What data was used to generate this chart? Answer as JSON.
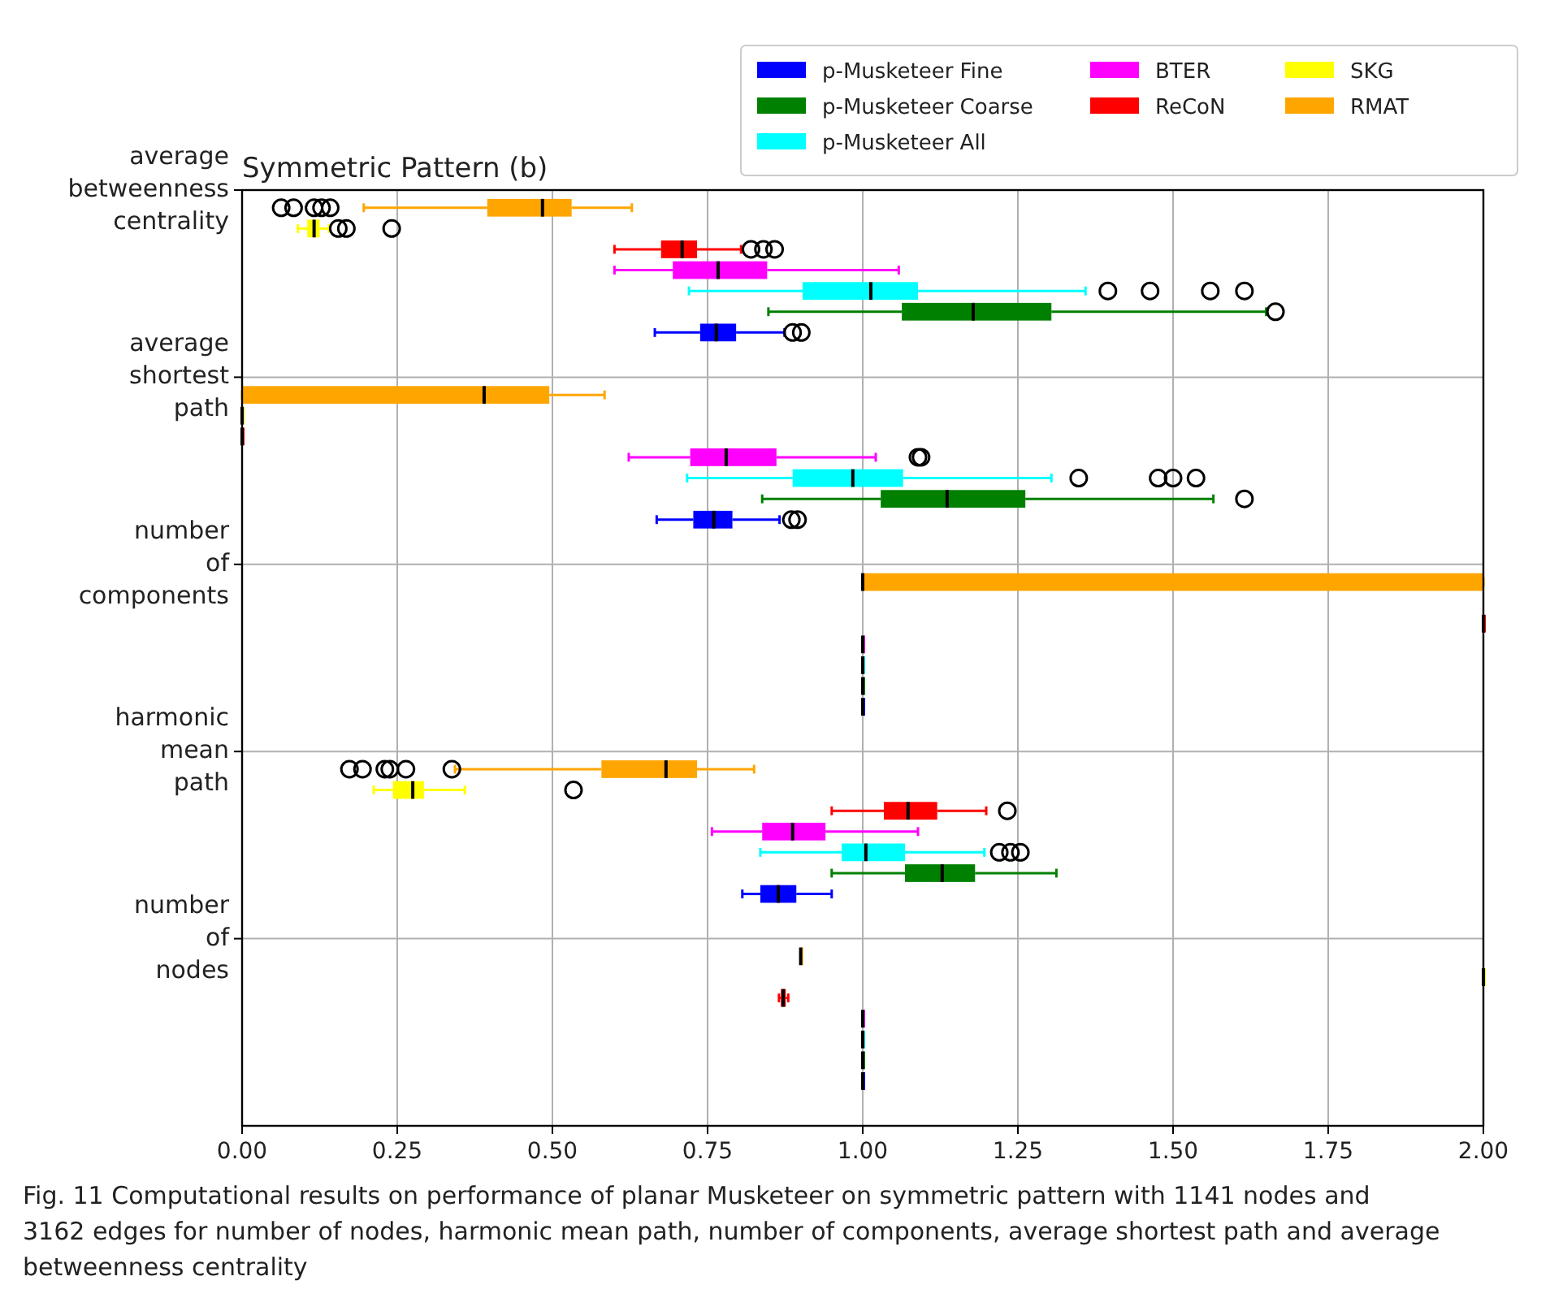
{
  "chart_data": {
    "type": "box",
    "orientation": "horizontal",
    "title": "Symmetric Pattern (b)",
    "categories": [
      "average betweenness centrality",
      "average shortest path",
      "number of components",
      "harmonic mean path",
      "number of nodes"
    ],
    "xlim": [
      0,
      2
    ],
    "xticks": [
      {
        "value": 0,
        "label": "0.00"
      },
      {
        "value": 0.25,
        "label": "0.25"
      },
      {
        "value": 0.5,
        "label": "0.50"
      },
      {
        "value": 0.75,
        "label": "0.75"
      },
      {
        "value": 1,
        "label": "1.00"
      },
      {
        "value": 1.25,
        "label": "1.25"
      },
      {
        "value": 1.5,
        "label": "1.50"
      },
      {
        "value": 1.75,
        "label": "1.75"
      },
      {
        "value": 2,
        "label": "2.00"
      }
    ],
    "grid": true,
    "legend": "top right",
    "annotations": [
      "Fig. 11  Computational results on performance of planar Musketeer on symmetric pattern with 1141 nodes and 3162 edges for number of nodes, harmonic mean path, number of components, average shortest path and average betweenness centrality"
    ],
    "series": [
      {
        "name": "p-Musketeer Fine",
        "color": "#0000ff",
        "boxes": [
          {
            "low": 0.665,
            "q1": 0.738,
            "median": 0.764,
            "q3": 0.796,
            "high": 0.874,
            "outliers": [
              0.887,
              0.901
            ]
          },
          {
            "low": 0.668,
            "q1": 0.727,
            "median": 0.76,
            "q3": 0.79,
            "high": 0.866,
            "outliers": [
              0.885,
              0.895
            ]
          },
          {
            "low": 1,
            "q1": 1,
            "median": 1,
            "q3": 1,
            "high": 1
          },
          {
            "low": 0.806,
            "q1": 0.835,
            "median": 0.864,
            "q3": 0.893,
            "high": 0.95
          },
          {
            "low": 1,
            "q1": 1,
            "median": 1,
            "q3": 1,
            "high": 1
          }
        ]
      },
      {
        "name": "p-Musketeer Coarse",
        "color": "#008000",
        "boxes": [
          {
            "low": 0.848,
            "q1": 1.063,
            "median": 1.178,
            "q3": 1.304,
            "high": 1.65,
            "outliers": [
              1.665
            ]
          },
          {
            "low": 0.838,
            "q1": 1.029,
            "median": 1.136,
            "q3": 1.262,
            "high": 1.565,
            "outliers": [
              1.615
            ]
          },
          {
            "low": 1,
            "q1": 1,
            "median": 1,
            "q3": 1,
            "high": 1
          },
          {
            "low": 0.95,
            "q1": 1.068,
            "median": 1.128,
            "q3": 1.181,
            "high": 1.312
          },
          {
            "low": 1,
            "q1": 1,
            "median": 1,
            "q3": 1,
            "high": 1
          }
        ]
      },
      {
        "name": "p-Musketeer All",
        "color": "#00ffff",
        "boxes": [
          {
            "low": 0.72,
            "q1": 0.903,
            "median": 1.013,
            "q3": 1.089,
            "high": 1.359,
            "outliers": [
              1.395,
              1.463,
              1.56,
              1.615
            ]
          },
          {
            "low": 0.717,
            "q1": 0.887,
            "median": 0.984,
            "q3": 1.065,
            "high": 1.304,
            "outliers": [
              1.348,
              1.476,
              1.5,
              1.537
            ]
          },
          {
            "low": 1,
            "q1": 1,
            "median": 1,
            "q3": 1,
            "high": 1
          },
          {
            "low": 0.835,
            "q1": 0.966,
            "median": 1.005,
            "q3": 1.068,
            "high": 1.196,
            "outliers": [
              1.22,
              1.238,
              1.254
            ]
          },
          {
            "low": 1,
            "q1": 1,
            "median": 1,
            "q3": 1,
            "high": 1
          }
        ]
      },
      {
        "name": "BTER",
        "color": "#ff00ff",
        "boxes": [
          {
            "low": 0.6,
            "q1": 0.694,
            "median": 0.767,
            "q3": 0.846,
            "high": 1.058
          },
          {
            "low": 0.623,
            "q1": 0.722,
            "median": 0.78,
            "q3": 0.861,
            "high": 1.021,
            "outliers": [
              1.089,
              1.094
            ]
          },
          {
            "low": 1,
            "q1": 1,
            "median": 1,
            "q3": 1,
            "high": 1
          },
          {
            "low": 0.757,
            "q1": 0.838,
            "median": 0.887,
            "q3": 0.94,
            "high": 1.089
          },
          {
            "low": 1,
            "q1": 1,
            "median": 1,
            "q3": 1,
            "high": 1
          }
        ]
      },
      {
        "name": "ReCoN",
        "color": "#ff0000",
        "boxes": [
          {
            "low": 0.6,
            "q1": 0.675,
            "median": 0.709,
            "q3": 0.733,
            "high": 0.804,
            "outliers": [
              0.82,
              0.84,
              0.858
            ]
          },
          {
            "low": 0,
            "q1": 0,
            "median": 0,
            "q3": 0,
            "high": 0
          },
          {
            "low": 2,
            "q1": 2,
            "median": 2,
            "q3": 2,
            "high": 2
          },
          {
            "low": 0.95,
            "q1": 1.034,
            "median": 1.073,
            "q3": 1.12,
            "high": 1.199,
            "outliers": [
              1.233
            ]
          },
          {
            "low": 0.865,
            "q1": 0.868,
            "median": 0.872,
            "q3": 0.876,
            "high": 0.88
          }
        ]
      },
      {
        "name": "SKG",
        "color": "#ffff00",
        "boxes": [
          {
            "low": 0.09,
            "q1": 0.105,
            "median": 0.116,
            "q3": 0.125,
            "high": 0.14,
            "outliers": [
              0.155,
              0.168,
              0.241
            ]
          },
          {
            "low": 0,
            "q1": 0,
            "median": 0,
            "q3": 0,
            "high": 0
          },
          null,
          {
            "low": 0.212,
            "q1": 0.243,
            "median": 0.275,
            "q3": 0.293,
            "high": 0.359,
            "outliers": [
              0.534
            ]
          },
          {
            "low": 2,
            "q1": 2,
            "median": 2,
            "q3": 2,
            "high": 2
          }
        ]
      },
      {
        "name": "RMAT",
        "color": "#ffa500",
        "boxes": [
          {
            "low": 0.196,
            "q1": 0.395,
            "median": 0.484,
            "q3": 0.531,
            "high": 0.628,
            "outliers": [
              0.063,
              0.083,
              0.116,
              0.128,
              0.142
            ]
          },
          {
            "low": 0,
            "q1": 0,
            "median": 0.39,
            "q3": 0.495,
            "high": 0.584
          },
          {
            "low": 1,
            "q1": 1,
            "median": 1,
            "q3": 2,
            "high": 2
          },
          {
            "low": 0.343,
            "q1": 0.579,
            "median": 0.683,
            "q3": 0.733,
            "high": 0.825,
            "outliers": [
              0.173,
              0.194,
              0.23,
              0.238,
              0.264,
              0.338
            ]
          },
          {
            "low": 0.9,
            "q1": 0.9,
            "median": 0.9,
            "q3": 0.9,
            "high": 0.9
          }
        ]
      }
    ]
  }
}
